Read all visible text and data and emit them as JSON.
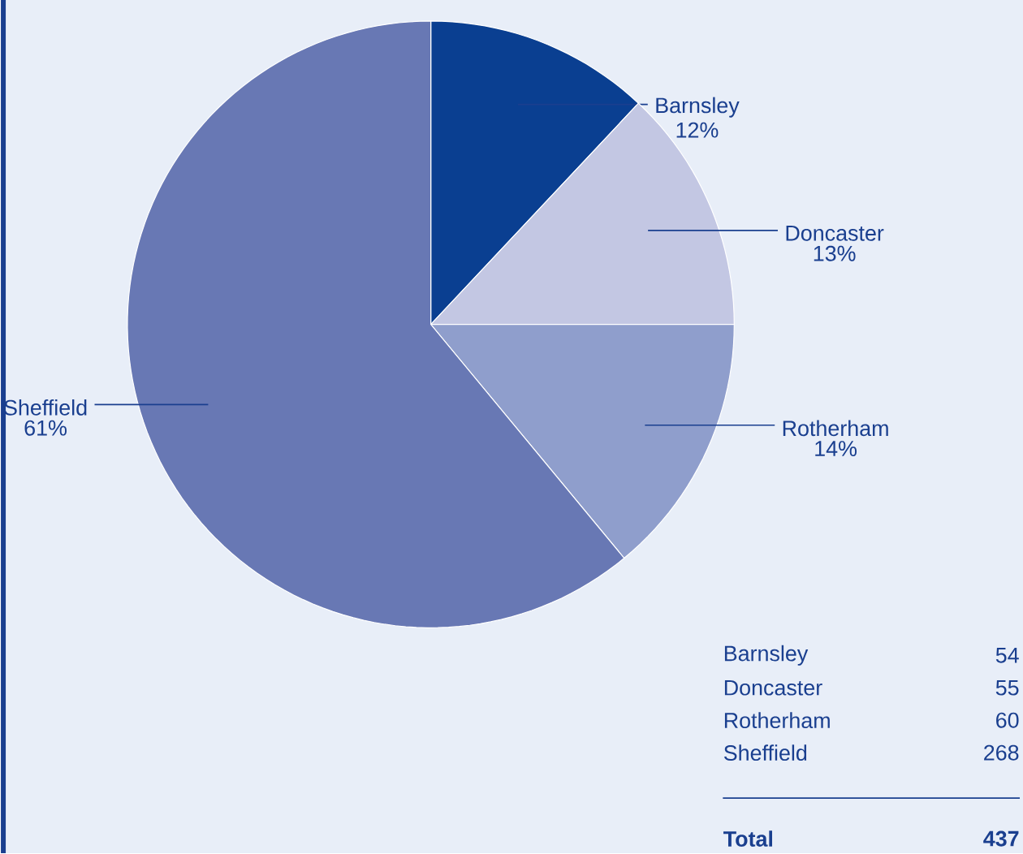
{
  "chart_data": {
    "type": "pie",
    "categories": [
      "Barnsley",
      "Doncaster",
      "Rotherham",
      "Sheffield"
    ],
    "values": [
      12,
      13,
      14,
      61
    ],
    "value_labels": [
      "12%",
      "13%",
      "14%",
      "61%"
    ],
    "colors": [
      "#0a3f91",
      "#c3c7e3",
      "#8f9ecc",
      "#6878b4"
    ],
    "annotations": [
      "Barnsley",
      "54",
      "Doncaster",
      "55",
      "Rotherham",
      "60",
      "Sheffield",
      "268",
      "Total",
      "437"
    ]
  }
}
